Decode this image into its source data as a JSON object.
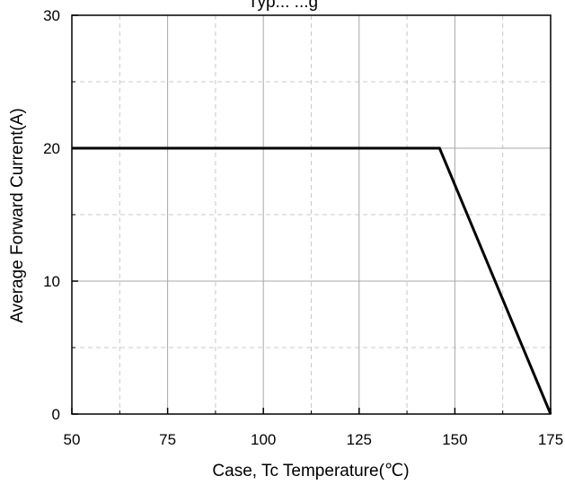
{
  "chart_data": {
    "type": "line",
    "title": "Typ... ...g",
    "xlabel": "Case, Tc Temperature(℃)",
    "ylabel": "Average Forward Current(A)",
    "xlim": [
      50,
      175
    ],
    "ylim": [
      0,
      30
    ],
    "x_ticks": [
      50,
      75,
      100,
      125,
      150,
      175
    ],
    "y_ticks": [
      0,
      10,
      20,
      30
    ],
    "x_ticks_labels": [
      "50",
      "75",
      "100",
      "125",
      "150",
      "175"
    ],
    "y_ticks_labels": [
      "0",
      "10",
      "20",
      "30"
    ],
    "x_minor_grid": [
      62.5,
      87.5,
      112.5,
      137.5,
      162.5
    ],
    "y_minor_grid": [
      5,
      15,
      25
    ],
    "grid": true,
    "series": [
      {
        "x": [
          50,
          146,
          175
        ],
        "y": [
          20,
          20,
          0
        ],
        "color": "#000000"
      }
    ]
  }
}
